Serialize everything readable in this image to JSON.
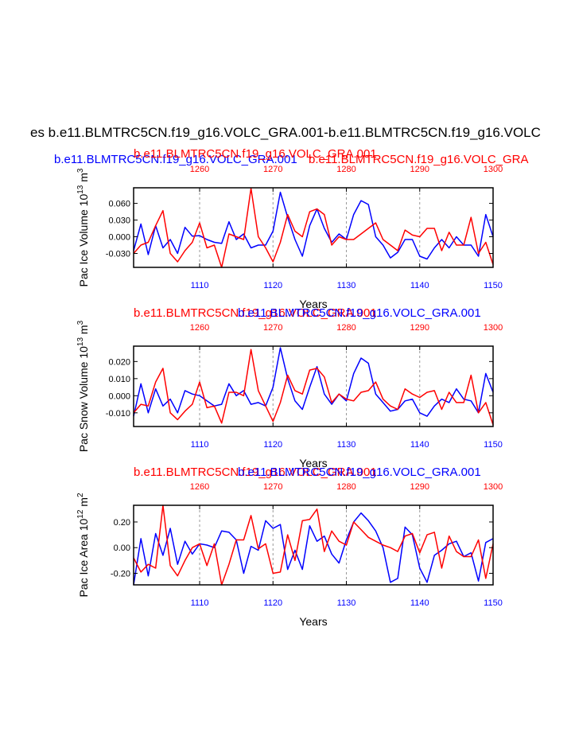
{
  "page_title": "es b.e11.BLMTRC5CN.f19_g16.VOLC_GRA.001-b.e11.BLMTRC5CN.f19_g16.VOLC",
  "top_header": {
    "blue": "b.e11.BLMTRC5CN.f19_g16.VOLC_GRA.001",
    "red_over": "b.e11.BLMTRC5CN.f19_g16.VOLC_GRA.001",
    "red_right": "b.e11.BLMTRC5CN.f19_g16.VOLC_GRA"
  },
  "colors": {
    "series_a": "#0000ff",
    "series_b": "#ff0000",
    "axis": "#000000",
    "grid": "#999999"
  },
  "chart_data": [
    {
      "type": "line",
      "title_red": "b.e11.BLMTRC5CN.f19_g16.VOLC_GRA.001",
      "title_blue": "b.e11.BLMTRC5CN.f19_g16.VOLC_GRA.001",
      "ylabel": "Pac Ice Volume 10",
      "ylabel_exp": "13",
      "ylabel_unit": " m",
      "ylabel_unit_exp": "3",
      "xlabel": "Years",
      "xlim": [
        1101,
        1150
      ],
      "top_xlim": [
        1251,
        1300
      ],
      "ylim": [
        -0.055,
        0.088
      ],
      "yticks": [
        -0.03,
        0.0,
        0.03,
        0.06
      ],
      "ytick_labels": [
        "-0.030",
        "0.000",
        "0.030",
        "0.060"
      ],
      "xticks": [
        1110,
        1120,
        1130,
        1140,
        1150
      ],
      "xtick_labels": [
        "1110",
        "1120",
        "1130",
        "1140",
        "1150"
      ],
      "top_xticks": [
        1260,
        1270,
        1280,
        1290,
        1300
      ],
      "top_xtick_labels": [
        "1260",
        "1270",
        "1280",
        "1290",
        "1300"
      ],
      "series": [
        {
          "name": "b.e11.BLMTRC5CN.f19_g16.VOLC_GRA.001",
          "color": "#0000ff",
          "values": [
            -0.025,
            0.023,
            -0.032,
            0.02,
            -0.02,
            -0.005,
            -0.03,
            0.017,
            0.001,
            0.002,
            -0.005,
            -0.01,
            -0.012,
            0.027,
            -0.005,
            0.005,
            -0.02,
            -0.015,
            -0.015,
            0.01,
            0.08,
            0.035,
            -0.005,
            -0.035,
            0.02,
            0.05,
            0.015,
            -0.01,
            0.005,
            -0.005,
            0.04,
            0.065,
            0.058,
            0.0,
            -0.015,
            -0.038,
            -0.028,
            -0.005,
            -0.005,
            -0.035,
            -0.04,
            -0.02,
            -0.005,
            -0.02,
            0.0,
            -0.015,
            -0.015,
            -0.035,
            0.04,
            0.0
          ]
        },
        {
          "name": "b.e11.BLMTRC5CN.f19_g16.VOLC_GRA.001",
          "color": "#ff0000",
          "values": [
            -0.03,
            -0.015,
            -0.01,
            0.02,
            0.047,
            -0.03,
            -0.045,
            -0.025,
            -0.01,
            0.025,
            -0.02,
            -0.015,
            -0.055,
            0.005,
            0.0,
            -0.005,
            0.087,
            0.0,
            -0.02,
            -0.045,
            -0.01,
            0.04,
            0.01,
            0.0,
            0.045,
            0.05,
            0.04,
            -0.015,
            0.0,
            -0.005,
            -0.005,
            0.005,
            0.015,
            0.025,
            -0.005,
            -0.015,
            -0.025,
            0.012,
            0.003,
            0.0,
            0.015,
            0.015,
            -0.025,
            0.008,
            -0.015,
            -0.015,
            0.035,
            -0.03,
            -0.01,
            -0.05
          ]
        }
      ]
    },
    {
      "type": "line",
      "title_red": "b.e11.BLMTRC5CN.f19_g16.VOLC_GRA.001",
      "title_blue": "b.e11.BLMTRC5CN.f19_g16.VOLC_GRA.001",
      "ylabel": "Pac Snow Volume 10",
      "ylabel_exp": "13",
      "ylabel_unit": "  m",
      "ylabel_unit_exp": "3",
      "xlabel": "Years",
      "xlim": [
        1101,
        1150
      ],
      "top_xlim": [
        1251,
        1300
      ],
      "ylim": [
        -0.018,
        0.029
      ],
      "yticks": [
        -0.01,
        0.0,
        0.01,
        0.02
      ],
      "ytick_labels": [
        "-0.010",
        "0.000",
        "0.010",
        "0.020"
      ],
      "xticks": [
        1110,
        1120,
        1130,
        1140,
        1150
      ],
      "xtick_labels": [
        "1110",
        "1120",
        "1130",
        "1140",
        "1150"
      ],
      "top_xticks": [
        1260,
        1270,
        1280,
        1290,
        1300
      ],
      "top_xtick_labels": [
        "1260",
        "1270",
        "1280",
        "1290",
        "1300"
      ],
      "series": [
        {
          "name": "b.e11.BLMTRC5CN.f19_g16.VOLC_GRA.001",
          "color": "#0000ff",
          "values": [
            -0.012,
            0.007,
            -0.01,
            0.004,
            -0.006,
            -0.002,
            -0.01,
            0.003,
            0.001,
            0.0,
            -0.003,
            -0.006,
            -0.005,
            0.007,
            0.0,
            0.003,
            -0.005,
            -0.004,
            -0.006,
            0.005,
            0.028,
            0.01,
            -0.003,
            -0.008,
            0.005,
            0.017,
            0.001,
            -0.005,
            0.001,
            -0.003,
            0.013,
            0.022,
            0.019,
            0.001,
            -0.004,
            -0.009,
            -0.008,
            -0.003,
            -0.002,
            -0.01,
            -0.012,
            -0.006,
            -0.002,
            -0.004,
            0.004,
            -0.002,
            -0.003,
            -0.01,
            0.013,
            0.002
          ]
        },
        {
          "name": "b.e11.BLMTRC5CN.f19_g16.VOLC_GRA.001",
          "color": "#ff0000",
          "values": [
            -0.01,
            -0.005,
            -0.006,
            0.008,
            0.016,
            -0.01,
            -0.014,
            -0.009,
            -0.005,
            0.008,
            -0.007,
            -0.006,
            -0.016,
            0.002,
            0.002,
            0.0,
            0.027,
            0.003,
            -0.006,
            -0.015,
            -0.004,
            0.012,
            0.003,
            0.001,
            0.015,
            0.016,
            0.011,
            -0.004,
            0.001,
            -0.002,
            -0.003,
            0.002,
            0.003,
            0.008,
            -0.002,
            -0.006,
            -0.008,
            0.004,
            0.001,
            -0.001,
            0.002,
            0.003,
            -0.008,
            0.002,
            -0.004,
            -0.004,
            0.012,
            -0.01,
            -0.004,
            -0.017
          ]
        }
      ]
    },
    {
      "type": "line",
      "title_red": "b.e11.BLMTRC5CN.f19_g16.VOLC_GRA.001",
      "title_blue": "b.e11.BLMTRC5CN.f19_g16.VOLC_GRA.001",
      "ylabel": "Pac Ice Area 10",
      "ylabel_exp": "12",
      "ylabel_unit": " m",
      "ylabel_unit_exp": "2",
      "xlabel": "Years",
      "xlim": [
        1101,
        1150
      ],
      "top_xlim": [
        1251,
        1300
      ],
      "ylim": [
        -0.29,
        0.33
      ],
      "yticks": [
        -0.2,
        0.0,
        0.2
      ],
      "ytick_labels": [
        "-0.20",
        "0.00",
        "0.20"
      ],
      "xticks": [
        1110,
        1120,
        1130,
        1140,
        1150
      ],
      "xtick_labels": [
        "1110",
        "1120",
        "1130",
        "1140",
        "1150"
      ],
      "top_xticks": [
        1260,
        1270,
        1280,
        1290,
        1300
      ],
      "top_xtick_labels": [
        "1260",
        "1270",
        "1280",
        "1290",
        "1300"
      ],
      "series": [
        {
          "name": "b.e11.BLMTRC5CN.f19_g16.VOLC_GRA.001",
          "color": "#0000ff",
          "values": [
            -0.29,
            0.07,
            -0.22,
            0.11,
            -0.06,
            0.15,
            -0.13,
            0.05,
            -0.05,
            0.03,
            0.02,
            0.0,
            0.13,
            0.12,
            0.06,
            -0.2,
            0.01,
            -0.02,
            0.21,
            0.15,
            0.18,
            -0.17,
            -0.02,
            -0.17,
            0.17,
            0.05,
            0.09,
            -0.05,
            -0.12,
            0.06,
            0.2,
            0.27,
            0.21,
            0.13,
            0.0,
            -0.27,
            -0.24,
            0.16,
            0.1,
            -0.16,
            -0.27,
            -0.06,
            -0.02,
            0.03,
            0.05,
            -0.07,
            -0.04,
            -0.26,
            0.04,
            0.07
          ]
        },
        {
          "name": "b.e11.BLMTRC5CN.f19_g16.VOLC_GRA.001",
          "color": "#ff0000",
          "values": [
            -0.08,
            -0.19,
            -0.13,
            -0.16,
            0.33,
            -0.14,
            -0.22,
            -0.1,
            0.0,
            0.03,
            -0.14,
            0.03,
            -0.29,
            -0.13,
            0.06,
            0.06,
            0.25,
            -0.01,
            0.03,
            -0.2,
            -0.19,
            0.1,
            -0.1,
            0.21,
            0.22,
            0.3,
            -0.03,
            0.13,
            0.05,
            0.02,
            0.2,
            0.14,
            0.08,
            0.05,
            0.02,
            0.0,
            -0.03,
            0.09,
            0.11,
            -0.04,
            0.1,
            0.12,
            -0.16,
            0.09,
            -0.03,
            -0.07,
            -0.07,
            0.06,
            -0.24,
            0.03
          ]
        }
      ]
    }
  ]
}
